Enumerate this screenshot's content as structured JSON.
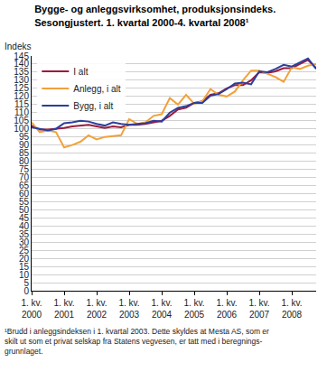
{
  "chart_data": {
    "type": "line",
    "title": [
      "Bygge- og anleggsvirksomhet, produksjonsindeks.",
      "Sesongjustert. 1. kvartal 2000-4. kvartal 2008¹"
    ],
    "y_label": "Indeks",
    "note": [
      "¹Brudd i anleggsindeksen i 1. kvartal 2003. Dette skyldes at Mesta AS, som er",
      "skilt ut som et privat selskap fra Statens vegvesen, er tatt med i beregnings-",
      "grunnlaget."
    ],
    "categories": [
      "1. kv. 2000",
      null,
      null,
      null,
      "1. kv. 2001",
      null,
      null,
      null,
      "1. kv. 2002",
      null,
      null,
      null,
      "1. kv. 2003",
      null,
      null,
      null,
      "1. kv. 2004",
      null,
      null,
      null,
      "1. kv. 2005",
      null,
      null,
      null,
      "1. kv. 2006",
      null,
      null,
      null,
      "1. kv. 2007",
      null,
      null,
      null,
      "1. kv. 2008",
      null,
      null,
      null
    ],
    "series": [
      {
        "name": "I alt",
        "color": "#9b1b3b",
        "values": [
          102,
          99.5,
          99.5,
          100,
          100.5,
          101.5,
          102,
          102.5,
          101.5,
          100.5,
          101.5,
          101,
          102.5,
          102.5,
          103,
          104,
          105,
          108,
          112,
          113,
          116,
          117,
          121,
          122,
          125,
          127,
          127,
          130,
          135,
          134.5,
          135.5,
          137.5,
          137.5,
          140,
          142.5,
          137.5
        ]
      },
      {
        "name": "Anlegg, i alt",
        "color": "#f2a13a",
        "values": [
          104,
          98,
          99,
          98,
          88.5,
          90,
          92,
          96,
          93.5,
          95,
          95.5,
          96,
          106,
          103,
          104,
          108,
          109,
          119,
          115,
          121,
          115.5,
          117,
          124.5,
          121,
          120,
          123,
          130,
          136,
          136,
          134,
          132,
          129,
          138,
          137,
          139,
          140
        ]
      },
      {
        "name": "Bygg, i alt",
        "color": "#2b3f9c",
        "values": [
          101,
          100,
          99,
          100,
          103.5,
          104,
          105,
          104.5,
          103,
          102,
          104,
          103,
          102.5,
          103,
          103.5,
          105,
          104.5,
          110,
          113,
          114,
          116,
          116,
          120.5,
          121.5,
          124.5,
          128,
          128.5,
          127.5,
          135.5,
          135,
          137,
          139.5,
          138.5,
          141,
          143.5,
          137
        ]
      }
    ],
    "ylim": [
      0,
      145
    ],
    "yticks": [
      0,
      5,
      10,
      15,
      20,
      25,
      30,
      35,
      40,
      45,
      50,
      55,
      60,
      65,
      70,
      75,
      80,
      85,
      90,
      95,
      100,
      105,
      110,
      115,
      120,
      125,
      130,
      135,
      140,
      145
    ],
    "grid": true,
    "legend": "top-left"
  }
}
